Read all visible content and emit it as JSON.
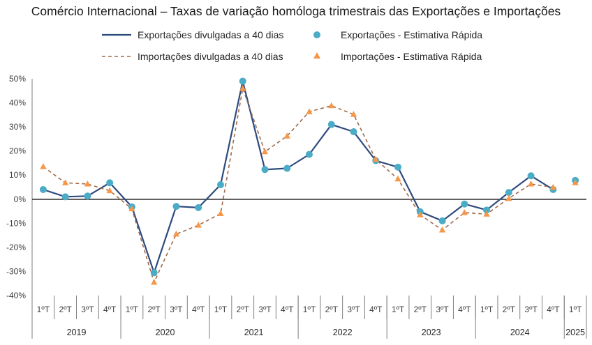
{
  "chart_data": {
    "type": "line",
    "title": "Comércio Internacional – Taxas de variação homóloga trimestrais das Exportações e Importações",
    "xlabel": "",
    "ylabel": "",
    "ylim": [
      -40,
      50
    ],
    "yticks": [
      "50%",
      "40%",
      "30%",
      "20%",
      "10%",
      "0%",
      "-10%",
      "-20%",
      "-30%",
      "-40%"
    ],
    "ytick_values": [
      50,
      40,
      30,
      20,
      10,
      0,
      -10,
      -20,
      -30,
      -40
    ],
    "categories": [
      "1ºT",
      "2ºT",
      "3ºT",
      "4ºT",
      "1ºT",
      "2ºT",
      "3ºT",
      "4ºT",
      "1ºT",
      "2ºT",
      "3ºT",
      "4ºT",
      "1ºT",
      "2ºT",
      "3ºT",
      "4ºT",
      "1ºT",
      "2ºT",
      "3ºT",
      "4ºT",
      "1ºT",
      "2ºT",
      "3ºT",
      "4ºT",
      "1ºT"
    ],
    "years": [
      {
        "label": "2019",
        "span": 4
      },
      {
        "label": "2020",
        "span": 4
      },
      {
        "label": "2021",
        "span": 4
      },
      {
        "label": "2022",
        "span": 4
      },
      {
        "label": "2023",
        "span": 4
      },
      {
        "label": "2024",
        "span": 4
      },
      {
        "label": "2025",
        "span": 1
      }
    ],
    "series": [
      {
        "name": "Exportações divulgadas a 40 dias",
        "style": "line",
        "color": "#2E4A7D",
        "values": [
          4.0,
          1.0,
          1.3,
          6.8,
          -3.2,
          -30.5,
          -3.0,
          -3.5,
          6.0,
          49.0,
          12.3,
          12.8,
          18.6,
          31.0,
          28.0,
          16.0,
          13.3,
          -5.2,
          -9.0,
          -2.0,
          -4.5,
          2.8,
          9.7,
          4.0,
          null
        ]
      },
      {
        "name": "Exportações - Estimativa Rápida",
        "style": "circle",
        "color": "#4BACC6",
        "values": [
          4.0,
          1.0,
          1.3,
          6.8,
          -3.2,
          -30.5,
          -3.0,
          -3.5,
          6.0,
          49.0,
          12.3,
          12.8,
          18.6,
          31.0,
          28.0,
          16.0,
          13.3,
          -5.2,
          -9.0,
          -2.0,
          -4.5,
          2.8,
          9.7,
          4.0,
          7.8
        ]
      },
      {
        "name": "Importações divulgadas a 40 dias",
        "style": "dashed",
        "color": "#A0694B",
        "values": [
          13.5,
          6.8,
          6.3,
          3.5,
          -4.0,
          -34.5,
          -14.5,
          -10.8,
          -6.0,
          46.0,
          19.7,
          26.2,
          36.3,
          38.8,
          35.2,
          16.5,
          8.4,
          -6.5,
          -12.8,
          -5.6,
          -6.2,
          0.3,
          6.3,
          4.9,
          null
        ]
      },
      {
        "name": "Importações - Estimativa Rápida",
        "style": "triangle",
        "color": "#F79646",
        "values": [
          13.5,
          6.8,
          6.3,
          3.5,
          -4.0,
          -34.5,
          -14.5,
          -10.8,
          -6.0,
          46.0,
          19.7,
          26.2,
          36.3,
          38.8,
          35.2,
          16.5,
          8.4,
          -6.5,
          -12.8,
          -5.6,
          -6.2,
          0.3,
          6.3,
          4.9,
          6.8
        ]
      }
    ],
    "grid": false,
    "legend": "top-center"
  }
}
